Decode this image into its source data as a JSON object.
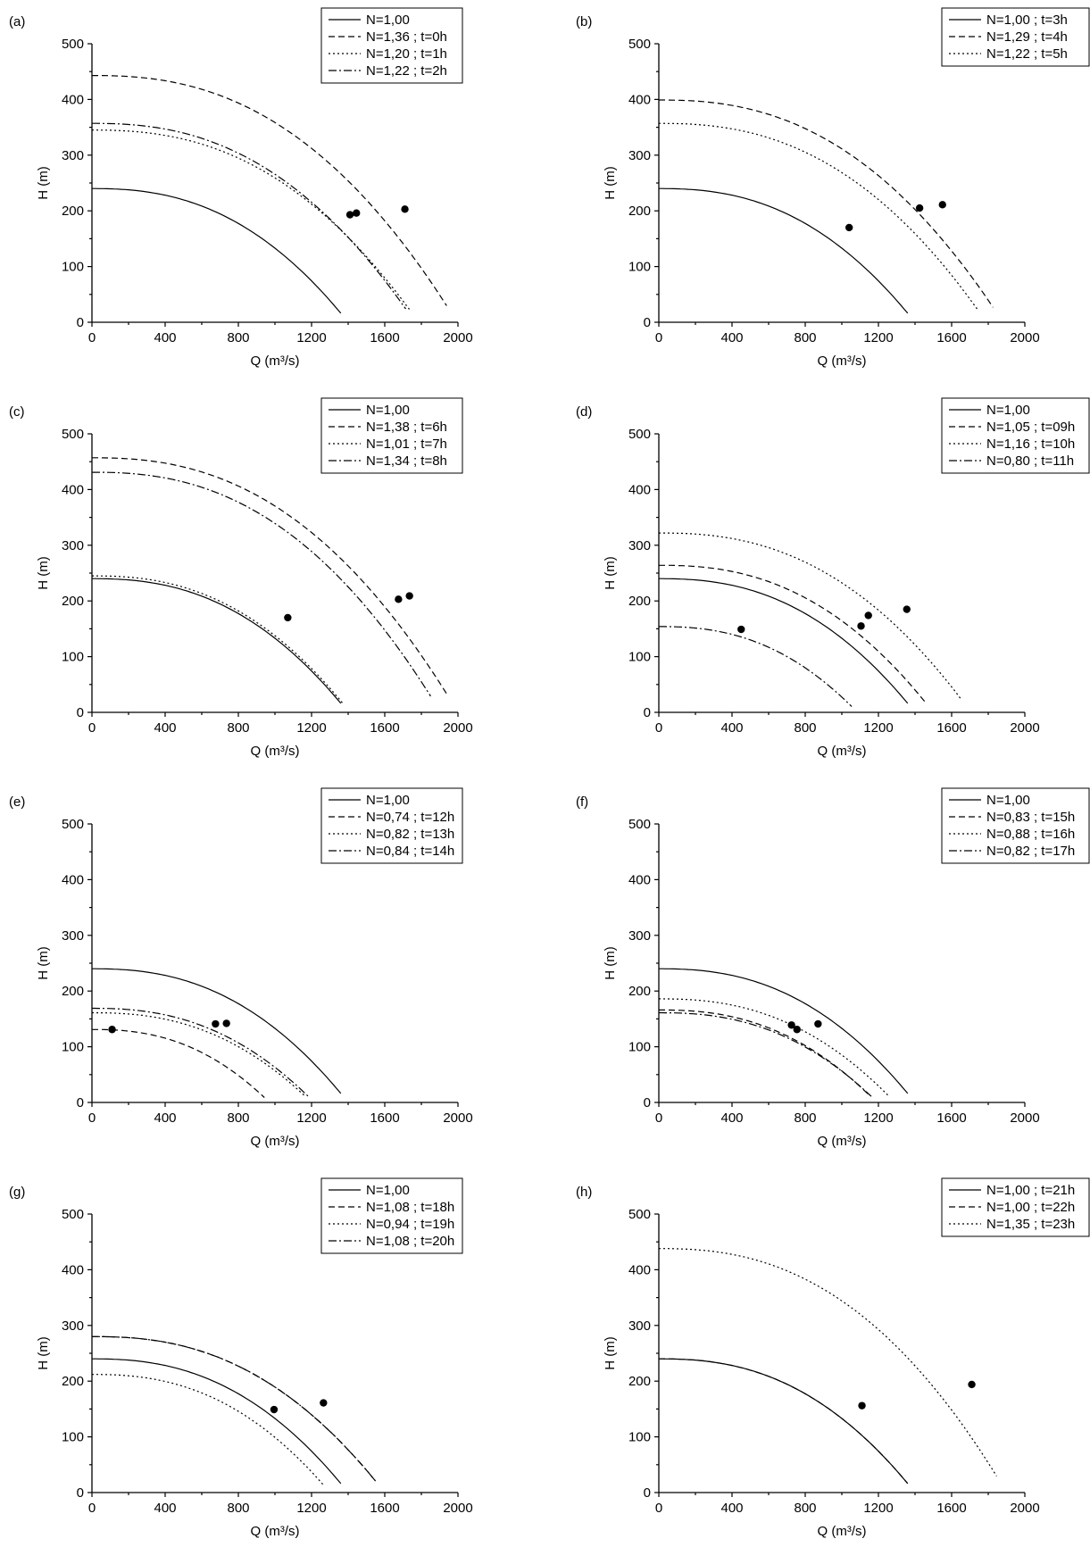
{
  "chart_data": [
    {
      "type": "line",
      "panel_label": "(a)",
      "xlabel": "Q (m³/s)",
      "ylabel": "H (m)",
      "xlim": [
        0,
        2000
      ],
      "ylim": [
        0,
        500
      ],
      "xticks": [
        "0",
        "400",
        "800",
        "1200",
        "1600",
        "2000"
      ],
      "yticks": [
        "0",
        "100",
        "200",
        "300",
        "400",
        "500"
      ],
      "legend_position": "top-right",
      "series": [
        {
          "name": "N=1,00",
          "style": "solid",
          "h0": 240,
          "qmax": 1400,
          "points": []
        },
        {
          "name": "N=1,36 ; t=0h",
          "style": "dashed",
          "h0": 443,
          "qmax": 1995,
          "points": [
            [
              1710,
              203
            ]
          ]
        },
        {
          "name": "N=1,20 ; t=1h",
          "style": "dotted",
          "h0": 345,
          "qmax": 1785,
          "points": [
            [
              1410,
              193
            ]
          ]
        },
        {
          "name": "N=1,22 ; t=2h",
          "style": "dashdot",
          "h0": 357,
          "qmax": 1765,
          "points": [
            [
              1445,
              196
            ]
          ]
        }
      ]
    },
    {
      "type": "line",
      "panel_label": "(b)",
      "xlabel": "Q (m³/s)",
      "ylabel": "H (m)",
      "xlim": [
        0,
        2000
      ],
      "ylim": [
        0,
        500
      ],
      "xticks": [
        "0",
        "400",
        "800",
        "1200",
        "1600",
        "2000"
      ],
      "yticks": [
        "0",
        "100",
        "200",
        "300",
        "400",
        "500"
      ],
      "legend_position": "top-right",
      "series": [
        {
          "name": "N=1,00 ; t=3h",
          "style": "solid",
          "h0": 240,
          "qmax": 1400,
          "points": [
            [
              1040,
              170
            ]
          ]
        },
        {
          "name": "N=1,29 ; t=4h",
          "style": "dashed",
          "h0": 399,
          "qmax": 1880,
          "points": [
            [
              1550,
              211
            ]
          ]
        },
        {
          "name": "N=1,22 ; t=5h",
          "style": "dotted",
          "h0": 357,
          "qmax": 1790,
          "points": [
            [
              1425,
              205
            ]
          ]
        }
      ]
    },
    {
      "type": "line",
      "panel_label": "(c)",
      "xlabel": "Q (m³/s)",
      "ylabel": "H (m)",
      "xlim": [
        0,
        2000
      ],
      "ylim": [
        0,
        500
      ],
      "xticks": [
        "0",
        "400",
        "800",
        "1200",
        "1600",
        "2000"
      ],
      "yticks": [
        "0",
        "100",
        "200",
        "300",
        "400",
        "500"
      ],
      "legend_position": "top-right",
      "series": [
        {
          "name": "N=1,00",
          "style": "solid",
          "h0": 240,
          "qmax": 1400,
          "points": []
        },
        {
          "name": "N=1,38 ; t=6h",
          "style": "dashed",
          "h0": 457,
          "qmax": 2000,
          "points": [
            [
              1735,
              209
            ]
          ]
        },
        {
          "name": "N=1,01 ; t=7h",
          "style": "dotted",
          "h0": 245,
          "qmax": 1410,
          "points": [
            [
              1070,
              170
            ]
          ]
        },
        {
          "name": "N=1,34 ; t=8h",
          "style": "dashdot",
          "h0": 431,
          "qmax": 1905,
          "points": [
            [
              1675,
              203
            ]
          ]
        }
      ]
    },
    {
      "type": "line",
      "panel_label": "(d)",
      "xlabel": "Q (m³/s)",
      "ylabel": "H (m)",
      "xlim": [
        0,
        2000
      ],
      "ylim": [
        0,
        500
      ],
      "xticks": [
        "0",
        "400",
        "800",
        "1200",
        "1600",
        "2000"
      ],
      "yticks": [
        "0",
        "100",
        "200",
        "300",
        "400",
        "500"
      ],
      "legend_position": "top-right",
      "series": [
        {
          "name": "N=1,00",
          "style": "solid",
          "h0": 240,
          "qmax": 1400,
          "points": [
            [
              1105,
              155
            ]
          ]
        },
        {
          "name": "N=1,05 ; t=09h",
          "style": "dashed",
          "h0": 264,
          "qmax": 1500,
          "points": [
            [
              1145,
              174
            ]
          ]
        },
        {
          "name": "N=1,16 ; t=10h",
          "style": "dotted",
          "h0": 322,
          "qmax": 1705,
          "points": [
            [
              1355,
              185
            ]
          ]
        },
        {
          "name": "N=0,80 ; t=11h",
          "style": "dashdot",
          "h0": 154,
          "qmax": 1085,
          "points": [
            [
              450,
              149
            ]
          ]
        }
      ]
    },
    {
      "type": "line",
      "panel_label": "(e)",
      "xlabel": "Q (m³/s)",
      "ylabel": "H (m)",
      "xlim": [
        0,
        2000
      ],
      "ylim": [
        0,
        500
      ],
      "xticks": [
        "0",
        "400",
        "800",
        "1200",
        "1600",
        "2000"
      ],
      "yticks": [
        "0",
        "100",
        "200",
        "300",
        "400",
        "500"
      ],
      "legend_position": "top-right",
      "series": [
        {
          "name": "N=1,00",
          "style": "solid",
          "h0": 240,
          "qmax": 1400,
          "points": []
        },
        {
          "name": "N=0,74 ; t=12h",
          "style": "dashed",
          "h0": 131,
          "qmax": 970,
          "points": [
            [
              110,
              131
            ]
          ]
        },
        {
          "name": "N=0,82 ; t=13h",
          "style": "dotted",
          "h0": 161,
          "qmax": 1200,
          "points": [
            [
              675,
              141
            ]
          ]
        },
        {
          "name": "N=0,84 ; t=14h",
          "style": "dashdot",
          "h0": 169,
          "qmax": 1215,
          "points": [
            [
              735,
              142
            ]
          ]
        }
      ]
    },
    {
      "type": "line",
      "panel_label": "(f)",
      "xlabel": "Q (m³/s)",
      "ylabel": "H (m)",
      "xlim": [
        0,
        2000
      ],
      "ylim": [
        0,
        500
      ],
      "xticks": [
        "0",
        "400",
        "800",
        "1200",
        "1600",
        "2000"
      ],
      "yticks": [
        "0",
        "100",
        "200",
        "300",
        "400",
        "500"
      ],
      "legend_position": "top-right",
      "series": [
        {
          "name": "N=1,00",
          "style": "solid",
          "h0": 240,
          "qmax": 1400,
          "points": []
        },
        {
          "name": "N=0,83 ; t=15h",
          "style": "dashed",
          "h0": 166,
          "qmax": 1190,
          "points": [
            [
              725,
              139
            ]
          ]
        },
        {
          "name": "N=0,88 ; t=16h",
          "style": "dotted",
          "h0": 186,
          "qmax": 1290,
          "points": [
            [
              870,
              141
            ]
          ]
        },
        {
          "name": "N=0,82 ; t=17h",
          "style": "dashdot",
          "h0": 161,
          "qmax": 1195,
          "points": [
            [
              755,
              131
            ]
          ]
        }
      ]
    },
    {
      "type": "line",
      "panel_label": "(g)",
      "xlabel": "Q (m³/s)",
      "ylabel": "H (m)",
      "xlim": [
        0,
        2000
      ],
      "ylim": [
        0,
        500
      ],
      "xticks": [
        "0",
        "400",
        "800",
        "1200",
        "1600",
        "2000"
      ],
      "yticks": [
        "0",
        "100",
        "200",
        "300",
        "400",
        "500"
      ],
      "legend_position": "top-right",
      "series": [
        {
          "name": "N=1,00",
          "style": "solid",
          "h0": 240,
          "qmax": 1400,
          "points": []
        },
        {
          "name": "N=1,08 ; t=18h",
          "style": "dashed",
          "h0": 280,
          "qmax": 1600,
          "points": []
        },
        {
          "name": "N=0,94 ; t=19h",
          "style": "dotted",
          "h0": 212,
          "qmax": 1300,
          "points": [
            [
              995,
              149
            ]
          ]
        },
        {
          "name": "N=1,08 ; t=20h",
          "style": "dashdot",
          "h0": 280,
          "qmax": 1600,
          "points": [
            [
              1265,
              161
            ]
          ]
        }
      ]
    },
    {
      "type": "line",
      "panel_label": "(h)",
      "xlabel": "Q (m³/s)",
      "ylabel": "H (m)",
      "xlim": [
        0,
        2000
      ],
      "ylim": [
        0,
        500
      ],
      "xticks": [
        "0",
        "400",
        "800",
        "1200",
        "1600",
        "2000"
      ],
      "yticks": [
        "0",
        "100",
        "200",
        "300",
        "400",
        "500"
      ],
      "legend_position": "top-right",
      "series": [
        {
          "name": "N=1,00 ; t=21h",
          "style": "solid",
          "h0": 240,
          "qmax": 1400,
          "points": [
            [
              1110,
              156
            ]
          ]
        },
        {
          "name": "N=1,00 ; t=22h",
          "style": "dashed",
          "h0": 240,
          "qmax": 1400,
          "points": []
        },
        {
          "name": "N=1,35 ; t=23h",
          "style": "dotted",
          "h0": 438,
          "qmax": 1900,
          "points": [
            [
              1710,
              194
            ]
          ]
        }
      ]
    }
  ]
}
